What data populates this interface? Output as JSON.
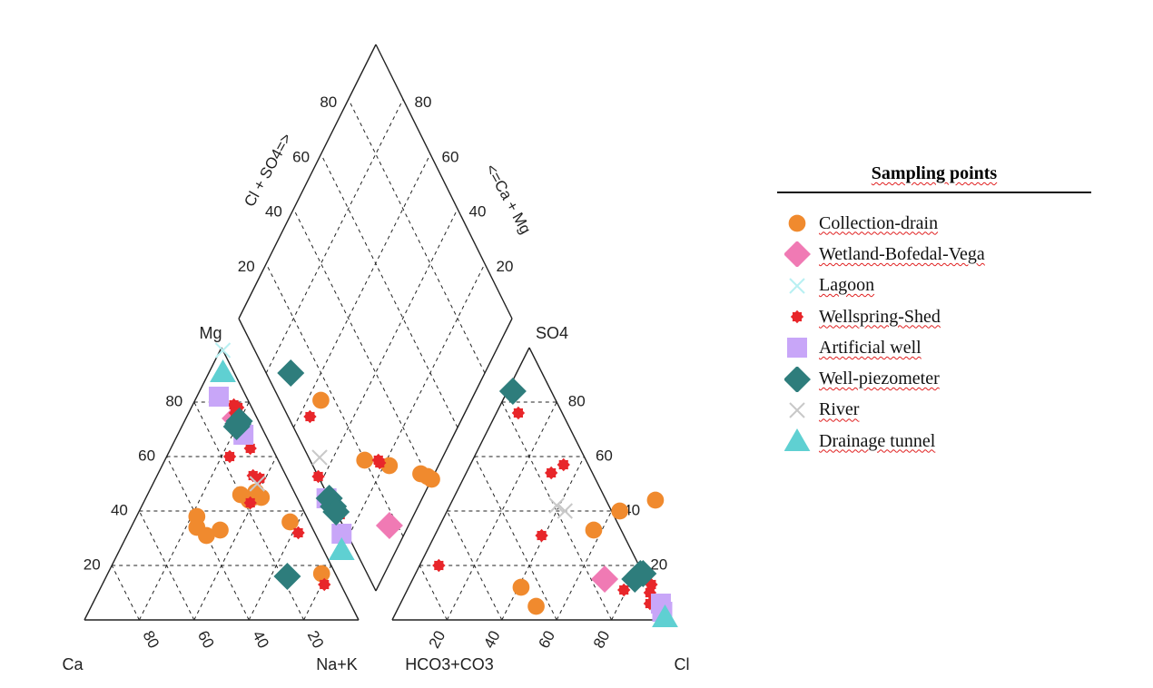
{
  "chart_data": {
    "type": "scatter",
    "subtype": "piper-diagram",
    "axis_labels": {
      "cation_left": "Ca",
      "cation_top": "Mg",
      "cation_right": "Na+K",
      "anion_left": "HCO3+CO3",
      "anion_top": "SO4",
      "anion_right": "Cl",
      "diamond_left": "Cl + SO4=>",
      "diamond_right": "<=Ca + Mg"
    },
    "ticks": [
      "20",
      "40",
      "60",
      "80"
    ],
    "legend": {
      "title": "Sampling points",
      "entries": [
        {
          "name": "Collection-drain",
          "color": "#F08A2E",
          "marker": "circle"
        },
        {
          "name": "Wetland-Bofedal-Vega",
          "color": "#F07AB4",
          "marker": "diamond"
        },
        {
          "name": "Lagoon",
          "color": "#B8F0F2",
          "marker": "x"
        },
        {
          "name": "Wellspring-Shed",
          "color": "#E8262A",
          "marker": "burst"
        },
        {
          "name": "Artificial well",
          "color": "#C8A6F8",
          "marker": "square"
        },
        {
          "name": "Well-piezometer",
          "color": "#2E7D7C",
          "marker": "diamond"
        },
        {
          "name": "River",
          "color": "#C8C8C8",
          "marker": "x"
        },
        {
          "name": "Drainage tunnel",
          "color": "#5FD0D2",
          "marker": "triangle"
        }
      ]
    },
    "series": [
      {
        "name": "Collection-drain",
        "cations": [
          [
            7,
            36
          ],
          [
            13,
            45
          ],
          [
            14,
            47
          ],
          [
            16,
            45
          ],
          [
            18,
            44
          ],
          [
            20,
            46
          ],
          [
            34,
            33
          ],
          [
            40,
            31
          ],
          [
            42,
            34
          ],
          [
            40,
            38
          ],
          [
            5,
            17
          ]
        ],
        "anions": [
          [
            44,
            74
          ],
          [
            40,
            63
          ],
          [
            33,
            57
          ],
          [
            12,
            41
          ],
          [
            5,
            50
          ]
        ]
      },
      {
        "name": "Wetland-Bofedal-Vega",
        "cations": [
          [
            8,
            74
          ]
        ],
        "anions": [
          [
            15,
            70
          ]
        ]
      },
      {
        "name": "Lagoon",
        "cations": [
          [
            0,
            99
          ]
        ],
        "anions": [
          [
            6,
            94
          ]
        ]
      },
      {
        "name": "Wellspring-Shed",
        "cations": [
          [
            8,
            63
          ],
          [
            17,
            60
          ],
          [
            12,
            53
          ],
          [
            10,
            52
          ],
          [
            18,
            43
          ],
          [
            6,
            32
          ],
          [
            6,
            13
          ],
          [
            6,
            72
          ],
          [
            6,
            79
          ],
          [
            5,
            78
          ],
          [
            7,
            76
          ]
        ],
        "anions": [
          [
            76,
            8
          ],
          [
            57,
            34
          ],
          [
            54,
            31
          ],
          [
            31,
            39
          ],
          [
            20,
            7
          ],
          [
            11,
            79
          ],
          [
            13,
            88
          ],
          [
            10,
            89
          ],
          [
            6,
            91
          ]
        ]
      },
      {
        "name": "Artificial well",
        "cations": [
          [
            8,
            68
          ],
          [
            10,
            82
          ]
        ],
        "anions": [
          [
            3,
            97
          ],
          [
            6,
            95
          ]
        ]
      },
      {
        "name": "Well-piezometer",
        "cations": [
          [
            18,
            16
          ],
          [
            9,
            71
          ],
          [
            8,
            72
          ],
          [
            7,
            73
          ]
        ],
        "anions": [
          [
            84,
            2
          ],
          [
            15,
            81
          ],
          [
            17,
            82
          ],
          [
            17,
            83
          ]
        ]
      },
      {
        "name": "River",
        "cations": [
          [
            12,
            50
          ]
        ],
        "anions": [
          [
            42,
            39
          ],
          [
            40,
            43
          ]
        ]
      },
      {
        "name": "Drainage tunnel",
        "cations": [
          [
            4,
            91
          ]
        ],
        "anions": [
          [
            1,
            99
          ]
        ]
      }
    ],
    "diamond_points": [
      {
        "series": "Collection-drain",
        "so4cl": 55,
        "camg": 85
      },
      {
        "series": "Collection-drain",
        "so4cl": 28,
        "camg": 80
      },
      {
        "series": "Collection-drain",
        "so4cl": 18,
        "camg": 72
      },
      {
        "series": "Collection-drain",
        "so4cl": 5,
        "camg": 62
      },
      {
        "series": "Collection-drain",
        "so4cl": 2,
        "camg": 60
      },
      {
        "series": "Collection-drain",
        "so4cl": 0,
        "camg": 59
      },
      {
        "series": "Wellspring-Shed",
        "so4cl": 56,
        "camg": 92
      },
      {
        "series": "Wellspring-Shed",
        "so4cl": 42,
        "camg": 100
      },
      {
        "series": "Wellspring-Shed",
        "so4cl": 23,
        "camg": 75
      },
      {
        "series": "Wellspring-Shed",
        "so4cl": 22,
        "camg": 75
      },
      {
        "series": "Wellspring-Shed",
        "so4cl": 34,
        "camg": 99
      },
      {
        "series": "Wellspring-Shed",
        "so4cl": 30,
        "camg": 99
      },
      {
        "series": "Wellspring-Shed",
        "so4cl": 27,
        "camg": 99
      },
      {
        "series": "Wetland-Bofedal-Vega",
        "so4cl": 7,
        "camg": 83
      },
      {
        "series": "River",
        "so4cl": 45,
        "camg": 96
      },
      {
        "series": "River",
        "so4cl": 31,
        "camg": 100
      },
      {
        "series": "Artificial well",
        "so4cl": 35,
        "camg": 101
      },
      {
        "series": "Artificial well",
        "so4cl": 23,
        "camg": 102
      },
      {
        "series": "Well-piezometer",
        "so4cl": 71,
        "camg": 91
      },
      {
        "series": "Well-piezometer",
        "so4cl": 34,
        "camg": 100
      },
      {
        "series": "Well-piezometer",
        "so4cl": 31,
        "camg": 100
      },
      {
        "series": "Well-piezometer",
        "so4cl": 29,
        "camg": 100
      },
      {
        "series": "Drainage tunnel",
        "so4cl": 20,
        "camg": 105
      }
    ]
  }
}
